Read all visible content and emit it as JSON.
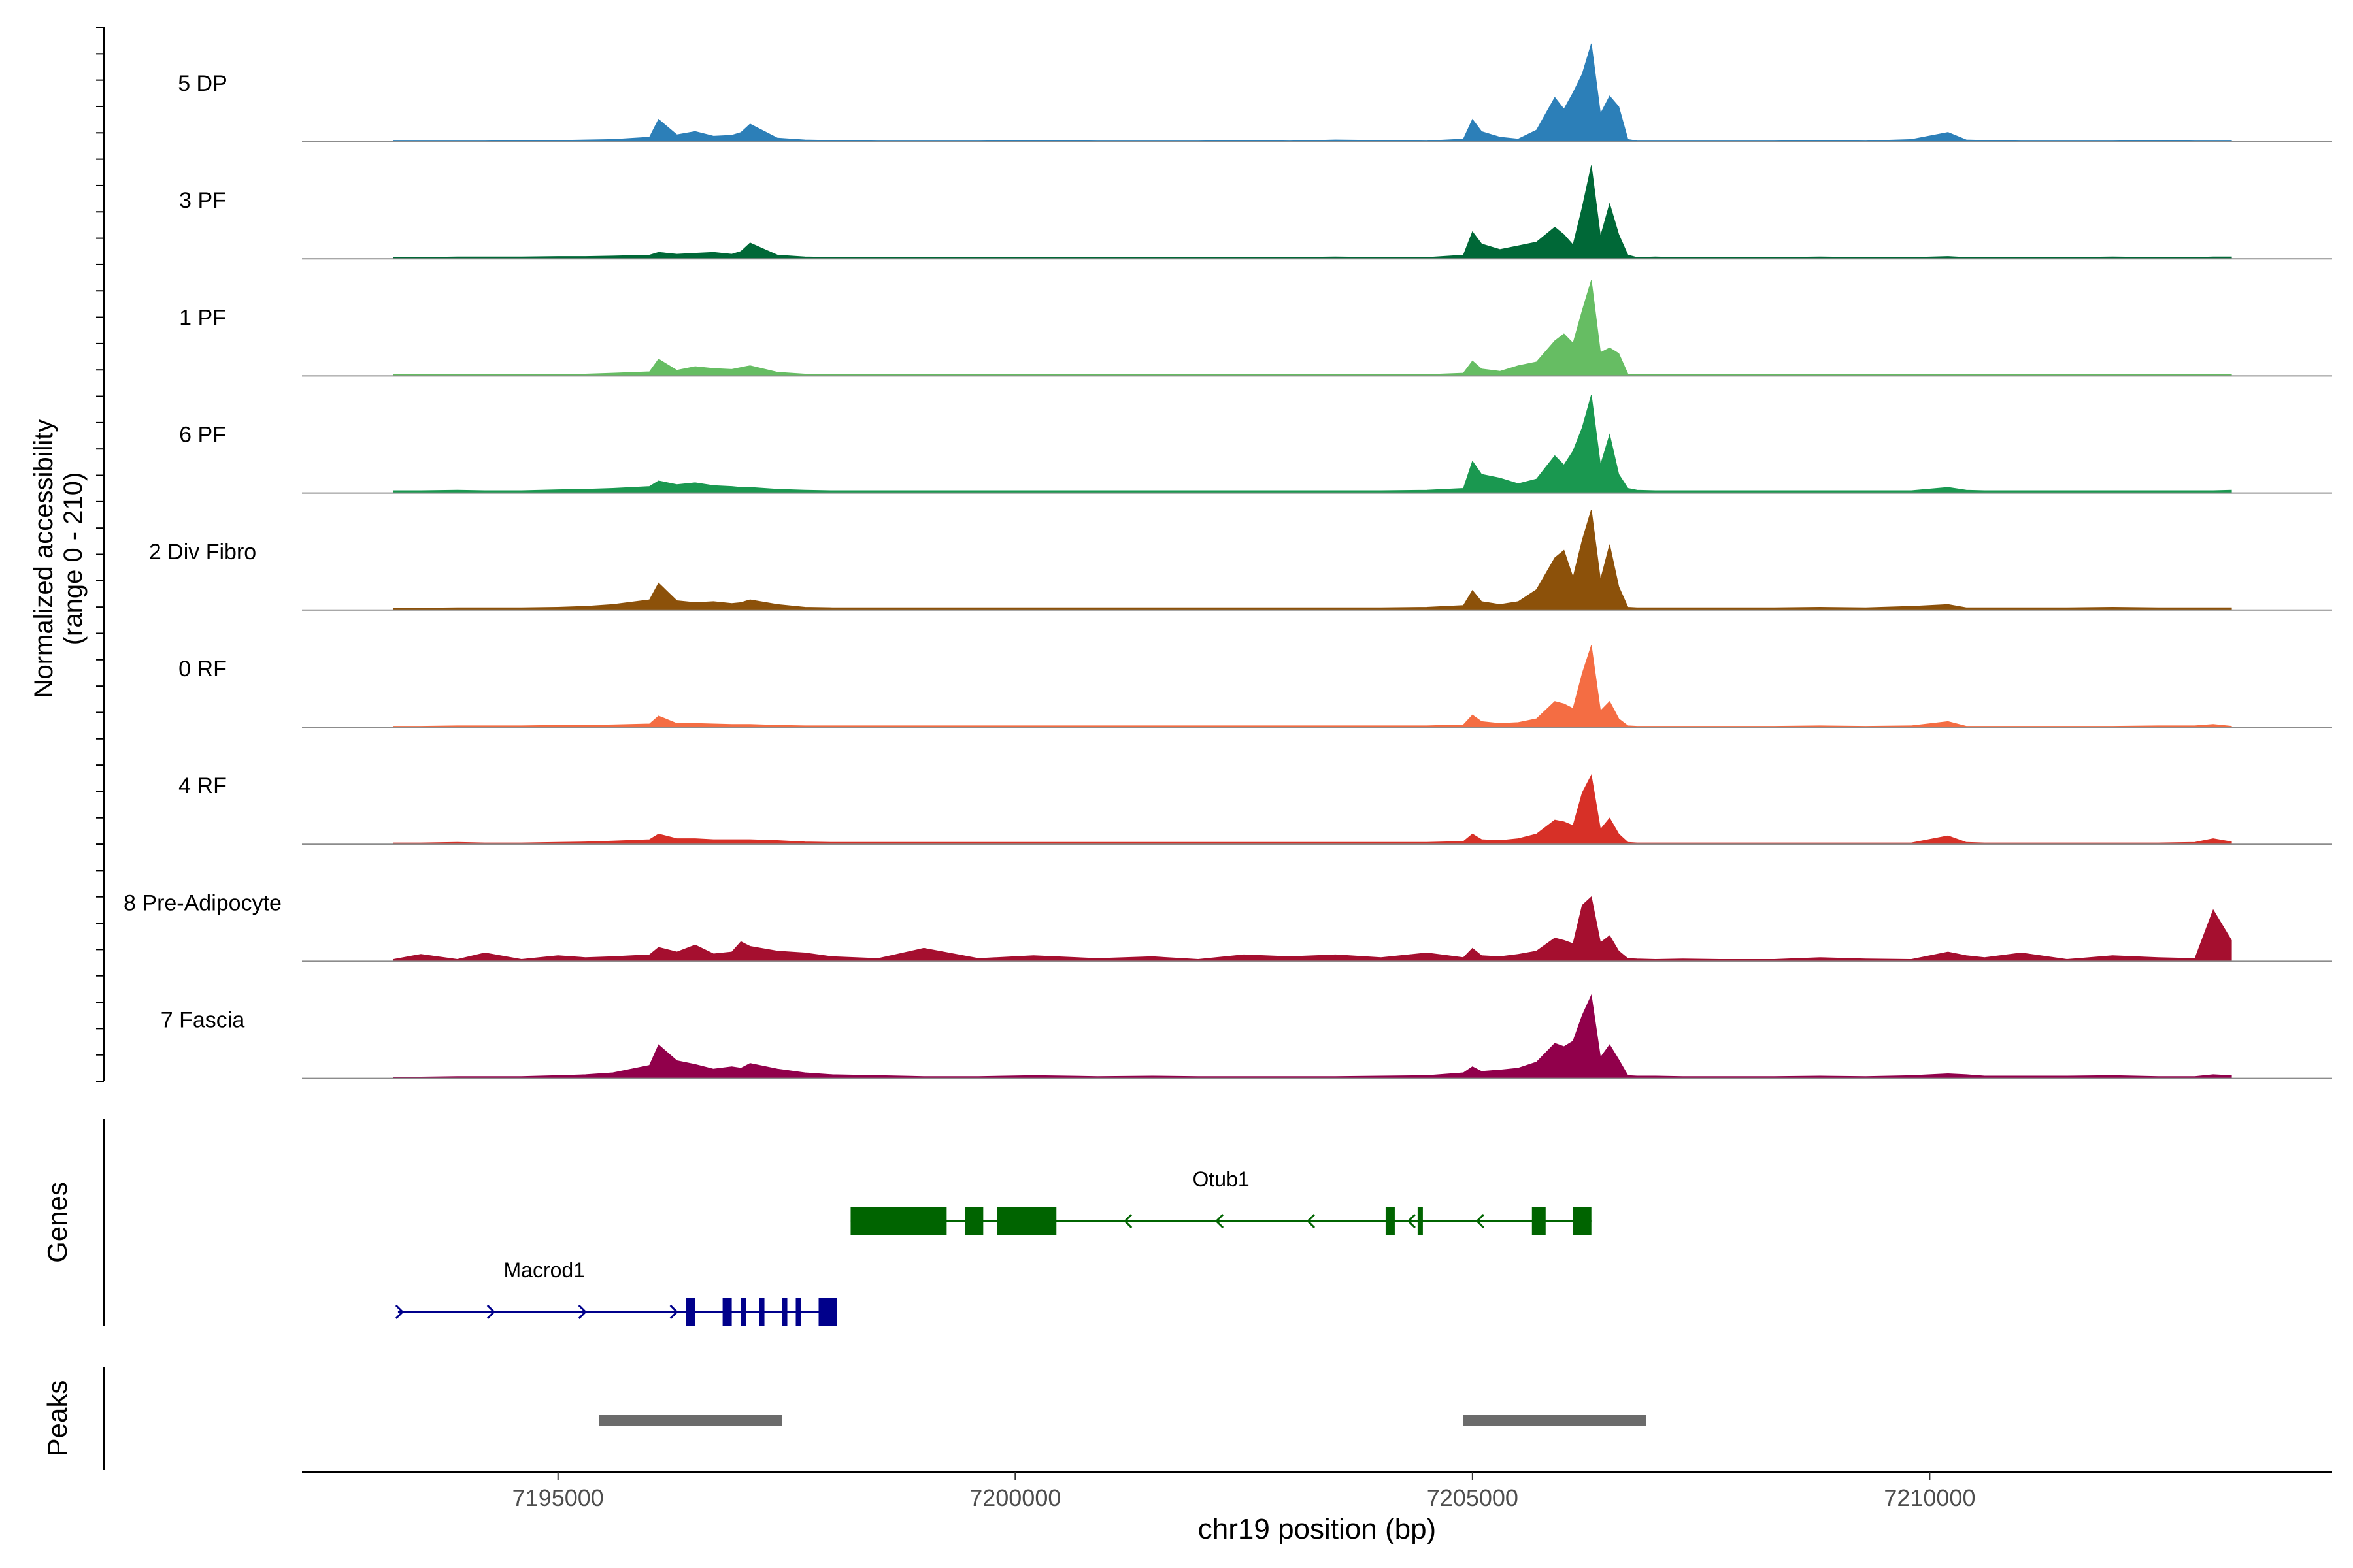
{
  "chart_data": {
    "type": "area",
    "title": "",
    "xlabel": "chr19 position (bp)",
    "ylabel": "Normalized accessibility",
    "ylabel_range_note": "(range 0 - 210)",
    "xlim": [
      7192200,
      7214400
    ],
    "ylim": [
      0,
      210
    ],
    "x_ticks": [
      7195000,
      7200000,
      7205000,
      7210000
    ],
    "x_tick_labels": [
      "7195000",
      "7200000",
      "7205000",
      "7210000"
    ],
    "peaks_grid_x": [
      7193200,
      7193500,
      7193900,
      7194200,
      7194600,
      7195000,
      7195300,
      7195600,
      7196000,
      7196100,
      7196300,
      7196500,
      7196700,
      7196900,
      7197000,
      7197100,
      7197400,
      7197700,
      7198000,
      7198500,
      7199000,
      7199600,
      7200200,
      7200900,
      7201500,
      7202000,
      7202500,
      7203000,
      7203500,
      7204000,
      7204500,
      7204900,
      7205000,
      7205100,
      7205300,
      7205500,
      7205700,
      7205900,
      7206000,
      7206100,
      7206200,
      7206300,
      7206400,
      7206500,
      7206600,
      7206700,
      7206800,
      7207000,
      7207300,
      7207700,
      7208300,
      7208800,
      7209300,
      7209800,
      7210200,
      7210400,
      7210600,
      7211000,
      7211500,
      7212000,
      7212500,
      7212900,
      7213100,
      7213300
    ],
    "series": [
      {
        "name": "5 DP",
        "color": "#2c7fb8",
        "values": [
          2,
          2,
          2,
          2,
          3,
          3,
          4,
          5,
          10,
          48,
          15,
          22,
          12,
          14,
          20,
          38,
          8,
          4,
          3,
          2,
          2,
          2,
          3,
          2,
          2,
          2,
          3,
          2,
          4,
          3,
          2,
          6,
          48,
          22,
          10,
          6,
          25,
          95,
          70,
          105,
          145,
          210,
          60,
          98,
          75,
          5,
          2,
          2,
          2,
          2,
          2,
          3,
          2,
          5,
          20,
          4,
          3,
          2,
          2,
          2,
          3,
          2,
          2,
          2
        ]
      },
      {
        "name": "3 PF",
        "color": "#006837",
        "values": [
          3,
          3,
          4,
          4,
          4,
          5,
          5,
          6,
          8,
          14,
          10,
          12,
          14,
          10,
          16,
          34,
          8,
          4,
          3,
          3,
          3,
          3,
          3,
          3,
          3,
          3,
          3,
          3,
          4,
          3,
          3,
          8,
          58,
          32,
          20,
          28,
          36,
          68,
          52,
          30,
          110,
          200,
          48,
          118,
          52,
          8,
          3,
          4,
          3,
          3,
          3,
          4,
          3,
          3,
          5,
          3,
          3,
          3,
          3,
          4,
          3,
          3,
          4,
          4
        ]
      },
      {
        "name": "1 PF",
        "color": "#66bd63",
        "values": [
          3,
          3,
          4,
          3,
          3,
          4,
          4,
          6,
          9,
          36,
          12,
          20,
          16,
          14,
          18,
          22,
          8,
          4,
          3,
          3,
          3,
          3,
          3,
          3,
          3,
          3,
          3,
          3,
          3,
          3,
          3,
          6,
          32,
          15,
          10,
          22,
          30,
          75,
          90,
          70,
          140,
          205,
          50,
          60,
          48,
          4,
          3,
          3,
          3,
          3,
          3,
          3,
          3,
          3,
          4,
          3,
          3,
          3,
          3,
          3,
          3,
          3,
          3,
          3
        ]
      },
      {
        "name": "6 PF",
        "color": "#1a9850",
        "values": [
          5,
          5,
          6,
          5,
          5,
          7,
          8,
          10,
          14,
          26,
          18,
          22,
          16,
          14,
          12,
          12,
          8,
          6,
          5,
          5,
          5,
          5,
          5,
          5,
          5,
          5,
          5,
          5,
          5,
          5,
          6,
          10,
          68,
          40,
          32,
          20,
          30,
          80,
          60,
          90,
          140,
          210,
          60,
          125,
          40,
          10,
          6,
          5,
          5,
          5,
          5,
          5,
          5,
          5,
          12,
          6,
          5,
          5,
          5,
          5,
          5,
          5,
          5,
          6
        ]
      },
      {
        "name": "2 Div Fibro",
        "color": "#8c510a",
        "values": [
          4,
          4,
          5,
          5,
          5,
          6,
          8,
          12,
          22,
          58,
          20,
          16,
          18,
          14,
          16,
          22,
          12,
          6,
          5,
          5,
          5,
          5,
          5,
          5,
          5,
          5,
          5,
          5,
          5,
          5,
          6,
          10,
          42,
          18,
          12,
          18,
          44,
          112,
          128,
          70,
          150,
          215,
          65,
          140,
          50,
          6,
          5,
          5,
          5,
          5,
          5,
          6,
          5,
          8,
          12,
          5,
          5,
          5,
          5,
          6,
          5,
          5,
          5,
          5
        ]
      },
      {
        "name": "0 RF",
        "color": "#f46d43",
        "values": [
          2,
          2,
          3,
          3,
          3,
          4,
          4,
          5,
          7,
          24,
          8,
          8,
          7,
          6,
          6,
          6,
          4,
          3,
          3,
          3,
          3,
          3,
          3,
          3,
          3,
          3,
          3,
          3,
          3,
          3,
          3,
          5,
          26,
          12,
          8,
          10,
          18,
          55,
          50,
          40,
          115,
          175,
          35,
          55,
          18,
          3,
          2,
          2,
          2,
          2,
          2,
          3,
          2,
          3,
          12,
          2,
          2,
          2,
          2,
          2,
          3,
          3,
          6,
          2
        ]
      },
      {
        "name": "4 RF",
        "color": "#d73027",
        "values": [
          3,
          3,
          4,
          3,
          3,
          4,
          5,
          7,
          10,
          22,
          12,
          12,
          10,
          10,
          10,
          10,
          8,
          5,
          4,
          4,
          4,
          4,
          4,
          4,
          4,
          4,
          4,
          4,
          4,
          4,
          4,
          6,
          22,
          10,
          8,
          12,
          22,
          52,
          48,
          40,
          110,
          148,
          32,
          56,
          22,
          4,
          3,
          3,
          3,
          3,
          3,
          3,
          3,
          3,
          18,
          4,
          3,
          3,
          3,
          3,
          3,
          4,
          12,
          5
        ]
      },
      {
        "name": "8 Pre-Adipocyte",
        "color": "#a50f2f",
        "values": [
          4,
          15,
          4,
          18,
          4,
          12,
          8,
          10,
          14,
          30,
          20,
          35,
          16,
          20,
          42,
          32,
          22,
          18,
          10,
          6,
          28,
          6,
          12,
          6,
          10,
          4,
          14,
          10,
          14,
          8,
          18,
          8,
          28,
          12,
          10,
          15,
          22,
          50,
          45,
          38,
          120,
          138,
          40,
          55,
          22,
          6,
          5,
          4,
          5,
          4,
          4,
          8,
          5,
          4,
          20,
          12,
          8,
          18,
          4,
          12,
          8,
          6,
          110,
          45
        ]
      },
      {
        "name": "7 Fascia",
        "color": "#91004b",
        "values": [
          3,
          3,
          4,
          4,
          4,
          6,
          8,
          12,
          28,
          72,
          38,
          30,
          20,
          25,
          22,
          32,
          20,
          12,
          8,
          6,
          4,
          4,
          6,
          4,
          5,
          4,
          4,
          4,
          4,
          5,
          6,
          12,
          25,
          15,
          18,
          22,
          35,
          75,
          68,
          80,
          135,
          178,
          45,
          72,
          40,
          6,
          5,
          5,
          4,
          4,
          4,
          5,
          4,
          6,
          10,
          8,
          5,
          5,
          5,
          6,
          4,
          4,
          8,
          6
        ]
      }
    ],
    "genes": [
      {
        "name": "Otub1",
        "strand": "-",
        "color": "#006400",
        "start": 7198200,
        "end": 7206300,
        "exons": [
          [
            7198200,
            7199250
          ],
          [
            7199450,
            7199650
          ],
          [
            7199800,
            7200450
          ],
          [
            7204050,
            7204150
          ],
          [
            7204400,
            7204450
          ],
          [
            7205650,
            7205800
          ],
          [
            7206100,
            7206300
          ]
        ],
        "arrows": [
          7201200,
          7202200,
          7203200,
          7204300,
          7205050
        ]
      },
      {
        "name": "Macrod1",
        "strand": "+",
        "color": "#00008b",
        "start": 7193250,
        "end": 7198050,
        "exons": [
          [
            7196400,
            7196500
          ],
          [
            7196800,
            7196900
          ],
          [
            7197000,
            7197050
          ],
          [
            7197200,
            7197250
          ],
          [
            7197450,
            7197500
          ],
          [
            7197600,
            7197650
          ],
          [
            7197850,
            7198050
          ]
        ],
        "arrows": [
          7193300,
          7194300,
          7195300,
          7196300
        ]
      }
    ],
    "peaks": [
      [
        7195450,
        7197450
      ],
      [
        7204900,
        7206900
      ]
    ],
    "track_labels": {
      "genes": "Genes",
      "peaks": "Peaks"
    }
  }
}
